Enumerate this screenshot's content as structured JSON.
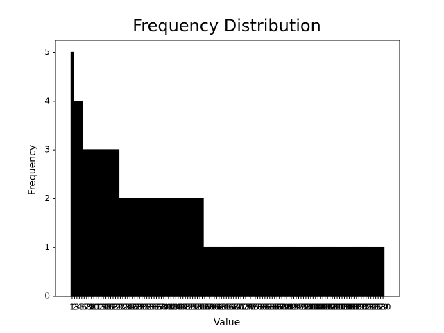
{
  "chart_data": {
    "type": "bar",
    "title": "Frequency Distribution",
    "x_label": "Value",
    "y_label": "Frequency",
    "categories": [
      "1",
      "2",
      "3",
      "4",
      "5",
      "6",
      "7",
      "8",
      "9",
      "10",
      "11",
      "12",
      "13",
      "14",
      "15",
      "16",
      "17",
      "18",
      "19",
      "20",
      "21",
      "22",
      "23",
      "24",
      "25",
      "26",
      "27",
      "28",
      "29",
      "30",
      "31",
      "32",
      "33",
      "34",
      "35",
      "36",
      "37",
      "38",
      "39",
      "40",
      "41",
      "42",
      "43",
      "44",
      "45",
      "46",
      "47",
      "48",
      "49",
      "50",
      "51",
      "52",
      "53",
      "54",
      "55",
      "56",
      "57",
      "58",
      "59",
      "60",
      "61",
      "62",
      "63",
      "64",
      "65",
      "66",
      "67",
      "68",
      "69",
      "70",
      "71",
      "72",
      "73",
      "74",
      "75",
      "76",
      "77",
      "78",
      "79",
      "80",
      "81",
      "82",
      "83",
      "84",
      "85",
      "86",
      "87",
      "88",
      "89",
      "90",
      "91",
      "92",
      "93",
      "94",
      "95",
      "96",
      "97",
      "98",
      "99",
      "100",
      "101",
      "102",
      "103",
      "104",
      "105",
      "106",
      "107",
      "108",
      "109",
      "110",
      "111",
      "112",
      "113",
      "114",
      "115",
      "116",
      "117",
      "118",
      "119",
      "120",
      "121",
      "122",
      "123",
      "124",
      "125",
      "126",
      "127",
      "128",
      "129",
      "130"
    ],
    "values": [
      5,
      4,
      4,
      4,
      4,
      3,
      3,
      3,
      3,
      3,
      3,
      3,
      3,
      3,
      3,
      3,
      3,
      3,
      3,
      3,
      2,
      2,
      2,
      2,
      2,
      2,
      2,
      2,
      2,
      2,
      2,
      2,
      2,
      2,
      2,
      2,
      2,
      2,
      2,
      2,
      2,
      2,
      2,
      2,
      2,
      2,
      2,
      2,
      2,
      2,
      2,
      2,
      2,
      2,
      2,
      1,
      1,
      1,
      1,
      1,
      1,
      1,
      1,
      1,
      1,
      1,
      1,
      1,
      1,
      1,
      1,
      1,
      1,
      1,
      1,
      1,
      1,
      1,
      1,
      1,
      1,
      1,
      1,
      1,
      1,
      1,
      1,
      1,
      1,
      1,
      1,
      1,
      1,
      1,
      1,
      1,
      1,
      1,
      1,
      1,
      1,
      1,
      1,
      1,
      1,
      1,
      1,
      1,
      1,
      1,
      1,
      1,
      1,
      1,
      1,
      1,
      1,
      1,
      1,
      1,
      1,
      1,
      1,
      1,
      1,
      1,
      1,
      1,
      1,
      1
    ],
    "color": "#000000",
    "ylim": [
      0,
      5.25
    ],
    "yticks": [
      0,
      1,
      2,
      3,
      4,
      5
    ]
  }
}
